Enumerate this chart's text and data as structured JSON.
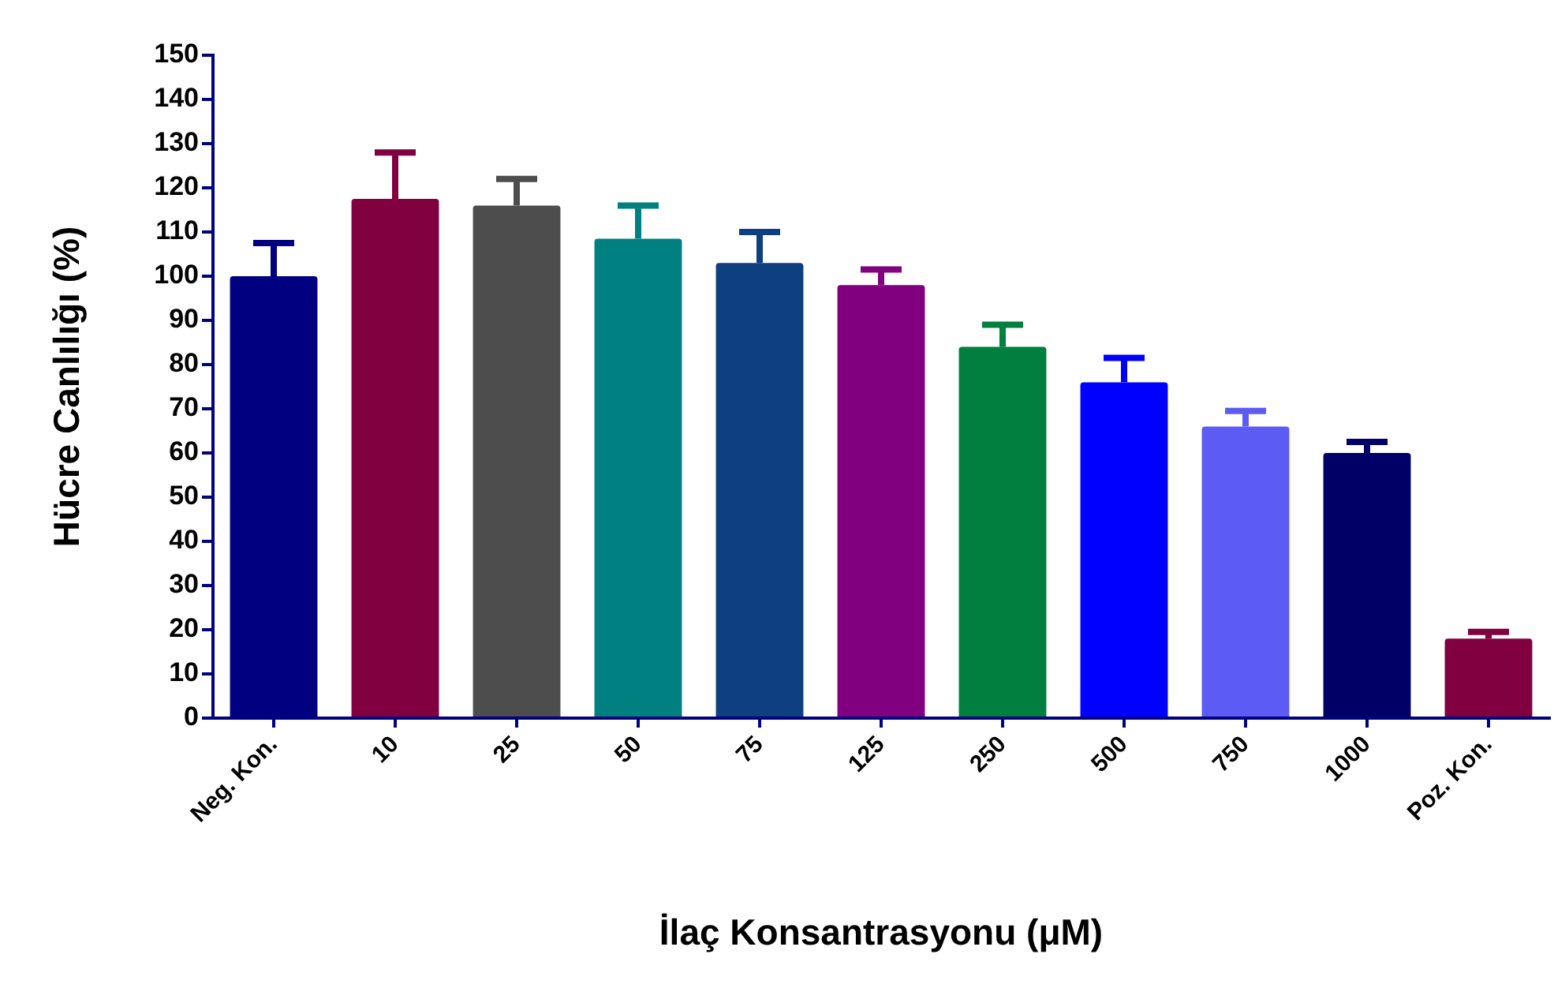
{
  "chart_data": {
    "type": "bar",
    "xlabel": "İlaç Konsantrasyonu (μM)",
    "ylabel": "Hücre Canlılığı (%)",
    "categories": [
      "Neg. Kon.",
      "10",
      "25",
      "50",
      "75",
      "125",
      "250",
      "500",
      "750",
      "1000",
      "Poz. Kon."
    ],
    "values": [
      100,
      117.5,
      116,
      108.5,
      103,
      98,
      84,
      76,
      66,
      60,
      18
    ],
    "colors": [
      "#000080",
      "#800040",
      "#4d4d4d",
      "#008080",
      "#0e3f80",
      "#800080",
      "#007f3f",
      "#0000ff",
      "#5c5cf5",
      "#000066",
      "#800040"
    ],
    "errors": [
      [
        100,
        107.5
      ],
      [
        117.5,
        128
      ],
      [
        116,
        122
      ],
      [
        108.5,
        116
      ],
      [
        103,
        110
      ],
      [
        98,
        101.5
      ],
      [
        84,
        89
      ],
      [
        76,
        81.5
      ],
      [
        66,
        69.5
      ],
      [
        60,
        62.5
      ],
      [
        18,
        19.5
      ]
    ],
    "ylim": [
      0,
      150
    ],
    "yticks": [
      0,
      10,
      20,
      30,
      40,
      50,
      60,
      70,
      80,
      90,
      100,
      110,
      120,
      130,
      140,
      150
    ],
    "grid": false,
    "legend": false
  }
}
